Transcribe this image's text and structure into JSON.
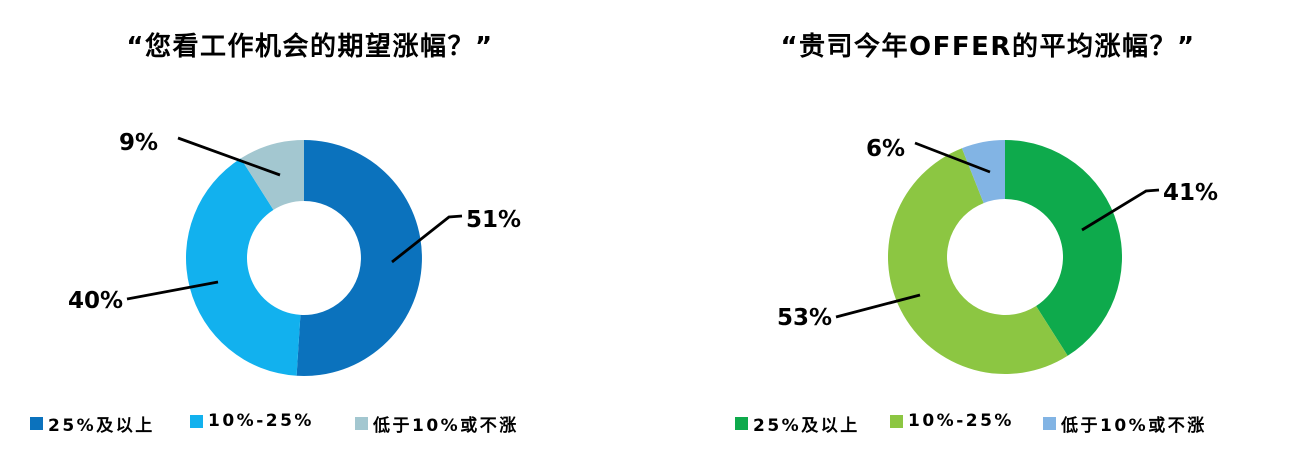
{
  "page": {
    "background": "#ffffff",
    "text_color": "#000000"
  },
  "chart_data": [
    {
      "type": "pie",
      "subtype": "donut",
      "title": "“您看工作机会的期望涨幅？”",
      "categories": [
        "25%及以上",
        "10%-25%",
        "低于10%或不涨"
      ],
      "values": [
        51,
        40,
        9
      ],
      "data_labels": [
        "51%",
        "40%",
        "9%"
      ],
      "colors": [
        "#0b72bd",
        "#12b1ee",
        "#a3c7d0"
      ],
      "start_angle_deg": 0,
      "direction": "clockwise",
      "donut_hole_ratio": 0.48,
      "legend_position": "bottom",
      "leader_lines": true
    },
    {
      "type": "pie",
      "subtype": "donut",
      "title": "“贵司今年OFFER的平均涨幅？”",
      "categories": [
        "25%及以上",
        "10%-25%",
        "低于10%或不涨"
      ],
      "values": [
        41,
        53,
        6
      ],
      "data_labels": [
        "41%",
        "53%",
        "6%"
      ],
      "colors": [
        "#0eaa4c",
        "#8cc642",
        "#82b4e4"
      ],
      "start_angle_deg": 0,
      "direction": "clockwise",
      "donut_hole_ratio": 0.49,
      "legend_position": "bottom",
      "leader_lines": true
    }
  ]
}
